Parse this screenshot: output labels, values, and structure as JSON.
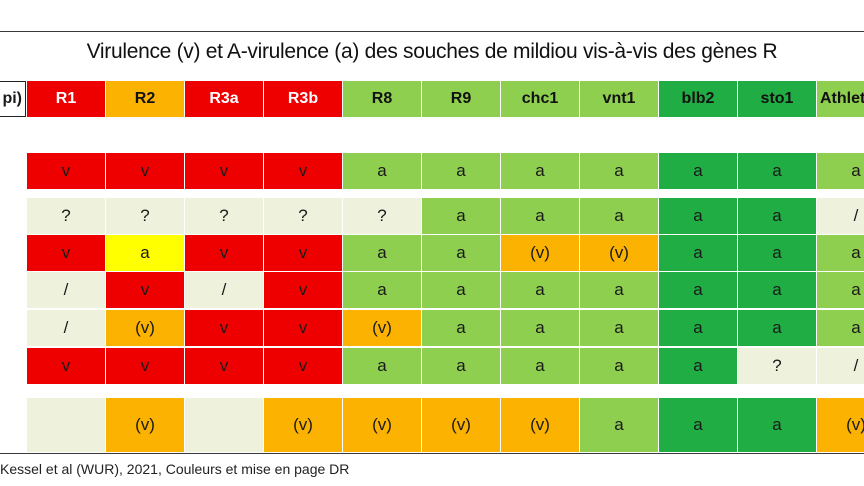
{
  "title": "Virulence (v) et A-virulence (a) des souches de mildiou vis-à-vis des gènes R",
  "stub_header": "pi)",
  "source": "Kessel et al  (WUR), 2021, Couleurs et mise en page DR",
  "colors": {
    "red": "#ef0000",
    "orange": "#fbb200",
    "yellow": "#ffff00",
    "cream": "#eef2dd",
    "lightgreen": "#8fcf4f",
    "darkgreen": "#1fad44",
    "white": "#ffffff"
  },
  "columns": [
    {
      "label": "R1",
      "color": "red",
      "text": "light"
    },
    {
      "label": "R2",
      "color": "orange",
      "text": "dark"
    },
    {
      "label": "R3a",
      "color": "red",
      "text": "light"
    },
    {
      "label": "R3b",
      "color": "red",
      "text": "light"
    },
    {
      "label": "R8",
      "color": "lightgreen",
      "text": "dark"
    },
    {
      "label": "R9",
      "color": "lightgreen",
      "text": "dark"
    },
    {
      "label": "chc1",
      "color": "lightgreen",
      "text": "dark"
    },
    {
      "label": "vnt1",
      "color": "lightgreen",
      "text": "dark"
    },
    {
      "label": "blb2",
      "color": "darkgreen",
      "text": "dark"
    },
    {
      "label": "sto1",
      "color": "darkgreen",
      "text": "dark"
    },
    {
      "label": "Athlet",
      "color": "lightgreen",
      "text": "dark"
    }
  ],
  "rows": [
    [
      [
        "v",
        "red"
      ],
      [
        "v",
        "red"
      ],
      [
        "v",
        "red"
      ],
      [
        "v",
        "red"
      ],
      [
        "a",
        "lightgreen"
      ],
      [
        "a",
        "lightgreen"
      ],
      [
        "a",
        "lightgreen"
      ],
      [
        "a",
        "lightgreen"
      ],
      [
        "a",
        "darkgreen"
      ],
      [
        "a",
        "darkgreen"
      ],
      [
        "a",
        "lightgreen"
      ]
    ],
    [
      [
        "?",
        "cream"
      ],
      [
        "?",
        "cream"
      ],
      [
        "?",
        "cream"
      ],
      [
        "?",
        "cream"
      ],
      [
        "?",
        "cream"
      ],
      [
        "a",
        "lightgreen"
      ],
      [
        "a",
        "lightgreen"
      ],
      [
        "a",
        "lightgreen"
      ],
      [
        "a",
        "darkgreen"
      ],
      [
        "a",
        "darkgreen"
      ],
      [
        "/",
        "cream"
      ]
    ],
    [
      [
        "v",
        "red"
      ],
      [
        "a",
        "yellow"
      ],
      [
        "v",
        "red"
      ],
      [
        "v",
        "red"
      ],
      [
        "a",
        "lightgreen"
      ],
      [
        "a",
        "lightgreen"
      ],
      [
        "(v)",
        "orange"
      ],
      [
        "(v)",
        "orange"
      ],
      [
        "a",
        "darkgreen"
      ],
      [
        "a",
        "darkgreen"
      ],
      [
        "a",
        "lightgreen"
      ]
    ],
    [
      [
        "/",
        "cream"
      ],
      [
        "v",
        "red"
      ],
      [
        "/",
        "cream"
      ],
      [
        "v",
        "red"
      ],
      [
        "a",
        "lightgreen"
      ],
      [
        "a",
        "lightgreen"
      ],
      [
        "a",
        "lightgreen"
      ],
      [
        "a",
        "lightgreen"
      ],
      [
        "a",
        "darkgreen"
      ],
      [
        "a",
        "darkgreen"
      ],
      [
        "a",
        "lightgreen"
      ]
    ],
    [
      [
        "/",
        "cream"
      ],
      [
        "(v)",
        "orange"
      ],
      [
        "v",
        "red"
      ],
      [
        "v",
        "red"
      ],
      [
        "(v)",
        "orange"
      ],
      [
        "a",
        "lightgreen"
      ],
      [
        "a",
        "lightgreen"
      ],
      [
        "a",
        "lightgreen"
      ],
      [
        "a",
        "darkgreen"
      ],
      [
        "a",
        "darkgreen"
      ],
      [
        "a",
        "lightgreen"
      ]
    ],
    [
      [
        "v",
        "red"
      ],
      [
        "v",
        "red"
      ],
      [
        "v",
        "red"
      ],
      [
        "v",
        "red"
      ],
      [
        "a",
        "lightgreen"
      ],
      [
        "a",
        "lightgreen"
      ],
      [
        "a",
        "lightgreen"
      ],
      [
        "a",
        "lightgreen"
      ],
      [
        "a",
        "darkgreen"
      ],
      [
        "?",
        "cream"
      ],
      [
        "/",
        "cream"
      ]
    ],
    [
      [
        "",
        "cream"
      ],
      [
        "(v)",
        "orange"
      ],
      [
        "",
        "cream"
      ],
      [
        "(v)",
        "orange"
      ],
      [
        "(v)",
        "orange"
      ],
      [
        "(v)",
        "orange"
      ],
      [
        "(v)",
        "orange"
      ],
      [
        "a",
        "lightgreen"
      ],
      [
        "a",
        "darkgreen"
      ],
      [
        "a",
        "darkgreen"
      ],
      [
        "(v)",
        "orange"
      ]
    ]
  ]
}
